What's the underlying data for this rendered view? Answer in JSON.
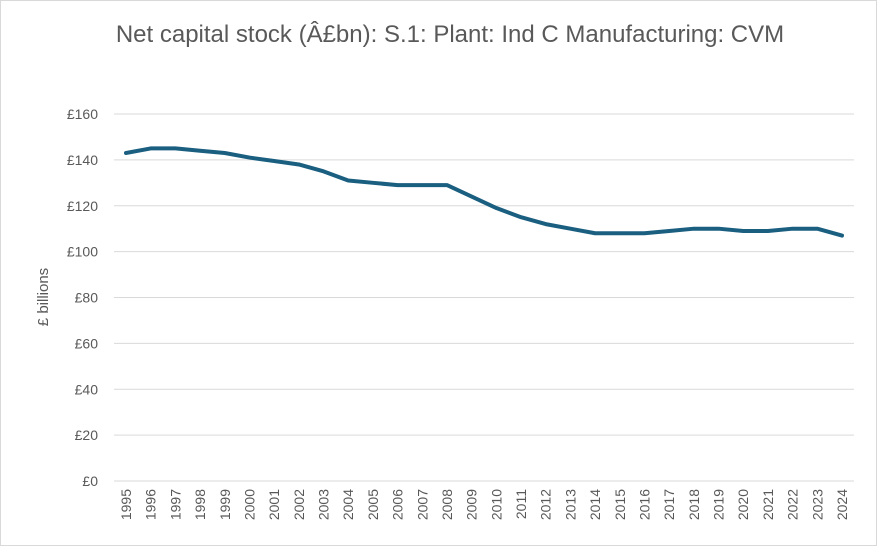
{
  "chart_data": {
    "type": "line",
    "title": "Net capital stock (Â£bn): S.1: Plant: Ind C Manufacturing: CVM",
    "xlabel": "",
    "ylabel": "£ billions",
    "ylim": [
      0,
      160
    ],
    "yticks": [
      "£0",
      "£20",
      "£40",
      "£60",
      "£80",
      "£100",
      "£120",
      "£140",
      "£160"
    ],
    "ytick_values": [
      0,
      20,
      40,
      60,
      80,
      100,
      120,
      140,
      160
    ],
    "grid": true,
    "legend": "none",
    "color": "#1a5e80",
    "categories": [
      "1995",
      "1996",
      "1997",
      "1998",
      "1999",
      "2000",
      "2001",
      "2002",
      "2003",
      "2004",
      "2005",
      "2006",
      "2007",
      "2008",
      "2009",
      "2010",
      "2011",
      "2012",
      "2013",
      "2014",
      "2015",
      "2016",
      "2017",
      "2018",
      "2019",
      "2020",
      "2021",
      "2022",
      "2023",
      "2024"
    ],
    "values": [
      143,
      145,
      145,
      144,
      143,
      141,
      139.5,
      138,
      135,
      131,
      130,
      129,
      129,
      129,
      124,
      119,
      115,
      112,
      110,
      108,
      108,
      108,
      109,
      110,
      110,
      109,
      109,
      110,
      110,
      107
    ]
  }
}
